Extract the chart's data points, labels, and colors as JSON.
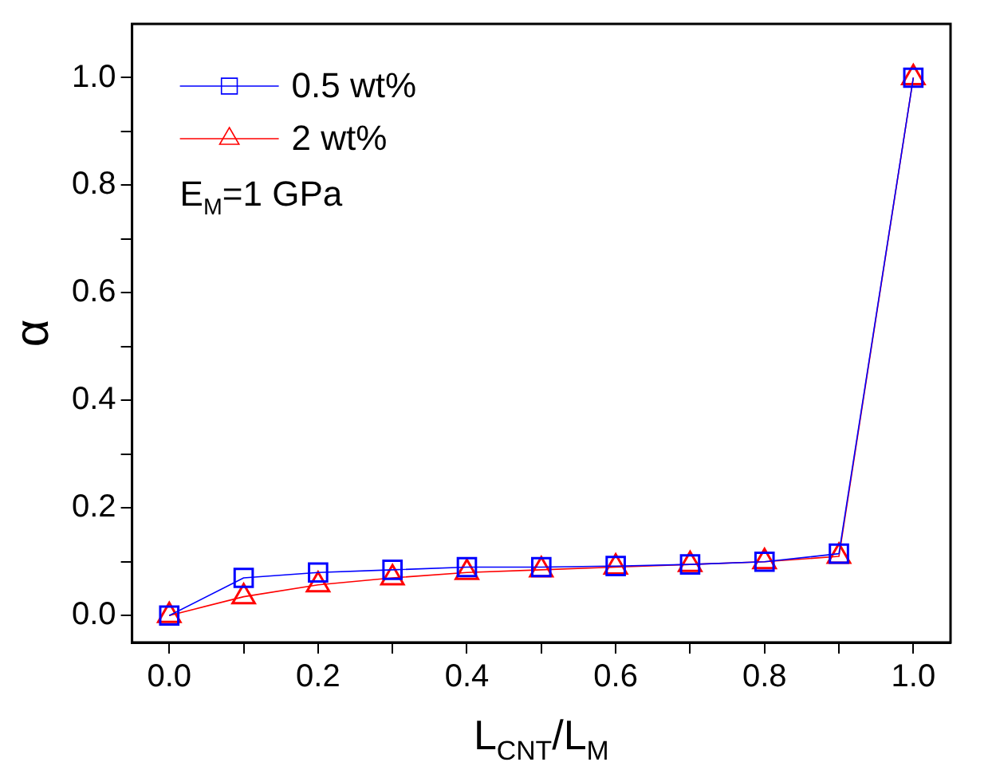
{
  "chart_data": {
    "type": "line",
    "xlabel": "L$_{CNT}$/L$_{M}$",
    "ylabel": "α",
    "x": [
      0,
      0.1,
      0.2,
      0.3,
      0.4,
      0.5,
      0.6,
      0.7,
      0.8,
      0.9,
      1.0
    ],
    "series": [
      {
        "name": "0.5 wt%",
        "color": "#0000ff",
        "marker": "square",
        "values": [
          0,
          0.07,
          0.08,
          0.085,
          0.09,
          0.09,
          0.092,
          0.095,
          0.1,
          0.115,
          1.0
        ]
      },
      {
        "name": "2 wt%",
        "color": "#ff0000",
        "marker": "triangle",
        "values": [
          0,
          0.035,
          0.057,
          0.07,
          0.08,
          0.085,
          0.09,
          0.095,
          0.1,
          0.11,
          1.0
        ]
      }
    ],
    "xlim": [
      -0.05,
      1.05
    ],
    "ylim": [
      -0.05,
      1.1
    ],
    "xticks": [
      {
        "value": 0,
        "label": "0.0"
      },
      {
        "value": 0.1,
        "label": null
      },
      {
        "value": 0.2,
        "label": "0.2"
      },
      {
        "value": 0.3,
        "label": null
      },
      {
        "value": 0.4,
        "label": "0.4"
      },
      {
        "value": 0.5,
        "label": null
      },
      {
        "value": 0.6,
        "label": "0.6"
      },
      {
        "value": 0.7,
        "label": null
      },
      {
        "value": 0.8,
        "label": "0.8"
      },
      {
        "value": 0.9,
        "label": null
      },
      {
        "value": 1.0,
        "label": "1.0"
      }
    ],
    "yticks": [
      {
        "value": 0,
        "label": "0.0"
      },
      {
        "value": 0.1,
        "label": null
      },
      {
        "value": 0.2,
        "label": "0.2"
      },
      {
        "value": 0.3,
        "label": null
      },
      {
        "value": 0.4,
        "label": "0.4"
      },
      {
        "value": 0.5,
        "label": null
      },
      {
        "value": 0.6,
        "label": "0.6"
      },
      {
        "value": 0.7,
        "label": null
      },
      {
        "value": 0.8,
        "label": "0.8"
      },
      {
        "value": 0.9,
        "label": null
      },
      {
        "value": 1.0,
        "label": "1.0"
      }
    ],
    "legend": "top left",
    "grid": false,
    "line_style": "solid",
    "annotations": [
      "E$_{M}$=1 GPa"
    ]
  }
}
